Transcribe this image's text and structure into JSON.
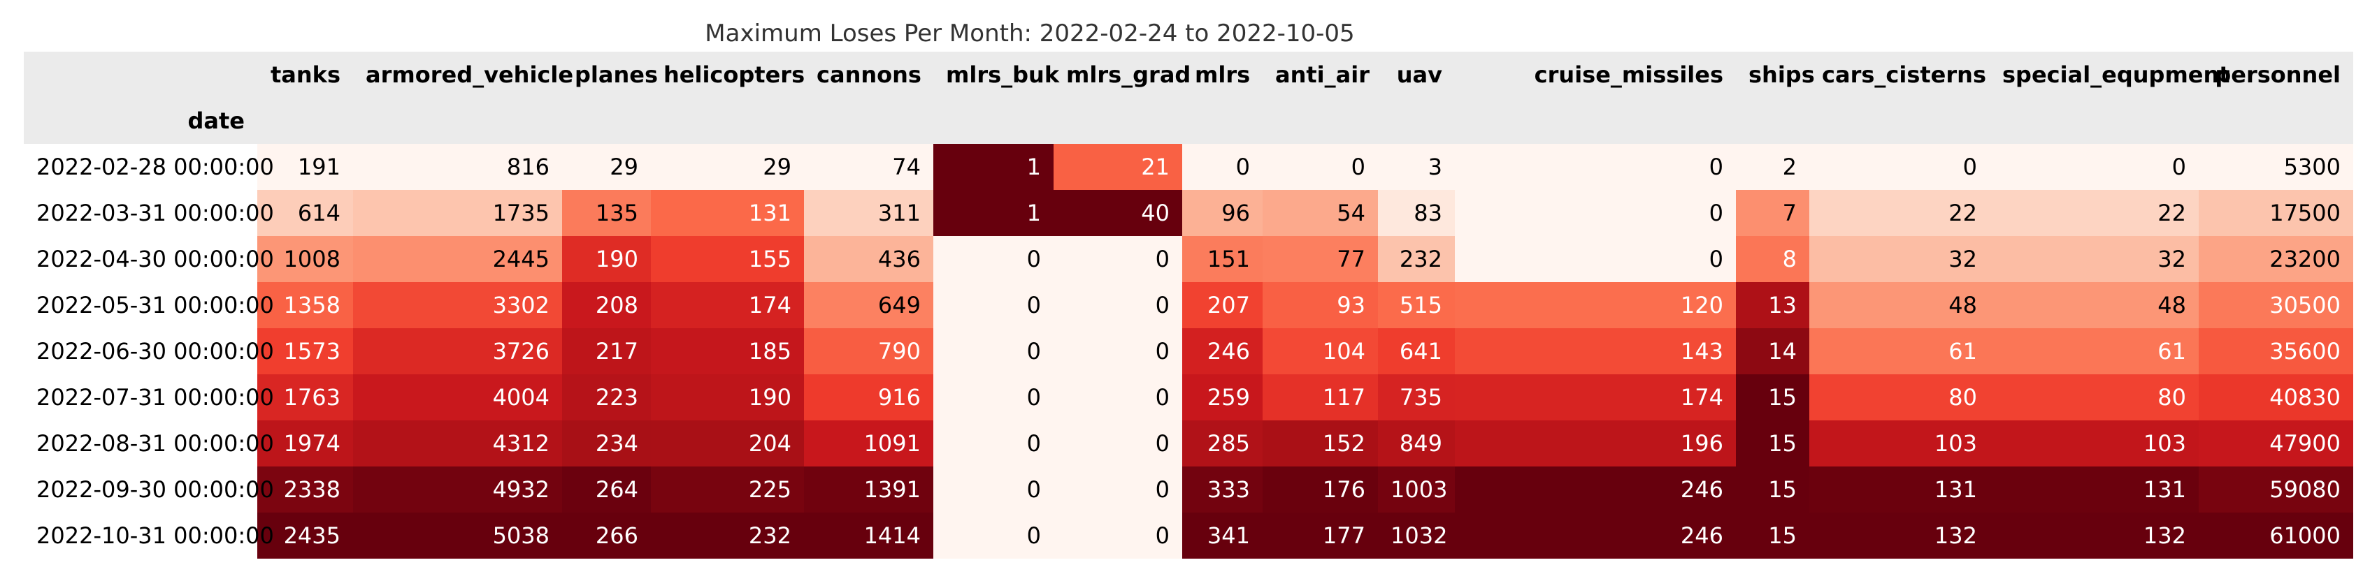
{
  "chart_data": {
    "type": "heatmap",
    "title": "Maximum Loses Per Month: 2022-02-24 to 2022-10-05",
    "index_name": "date",
    "columns": [
      "tanks",
      "armored_vehicle",
      "planes",
      "helicopters",
      "cannons",
      "mlrs_buk",
      "mlrs_grad",
      "mlrs",
      "anti_air",
      "uav",
      "cruise_missiles",
      "ships",
      "cars_cisterns",
      "special_equpment",
      "personnel"
    ],
    "rows": [
      "2022-02-28 00:00:00",
      "2022-03-31 00:00:00",
      "2022-04-30 00:00:00",
      "2022-05-31 00:00:00",
      "2022-06-30 00:00:00",
      "2022-07-31 00:00:00",
      "2022-08-31 00:00:00",
      "2022-09-30 00:00:00",
      "2022-10-31 00:00:00"
    ],
    "values": [
      [
        191,
        816,
        29,
        29,
        74,
        1,
        21,
        0,
        0,
        3,
        0,
        2,
        0,
        0,
        5300
      ],
      [
        614,
        1735,
        135,
        131,
        311,
        1,
        40,
        96,
        54,
        83,
        0,
        7,
        22,
        22,
        17500
      ],
      [
        1008,
        2445,
        190,
        155,
        436,
        0,
        0,
        151,
        77,
        232,
        0,
        8,
        32,
        32,
        23200
      ],
      [
        1358,
        3302,
        208,
        174,
        649,
        0,
        0,
        207,
        93,
        515,
        120,
        13,
        48,
        48,
        30500
      ],
      [
        1573,
        3726,
        217,
        185,
        790,
        0,
        0,
        246,
        104,
        641,
        143,
        14,
        61,
        61,
        35600
      ],
      [
        1763,
        4004,
        223,
        190,
        916,
        0,
        0,
        259,
        117,
        735,
        174,
        15,
        80,
        80,
        40830
      ],
      [
        1974,
        4312,
        234,
        204,
        1091,
        0,
        0,
        285,
        152,
        849,
        196,
        15,
        103,
        103,
        47900
      ],
      [
        2338,
        4932,
        264,
        225,
        1391,
        0,
        0,
        333,
        176,
        1003,
        246,
        15,
        131,
        131,
        59080
      ],
      [
        2435,
        5038,
        266,
        232,
        1414,
        0,
        0,
        341,
        177,
        1032,
        246,
        15,
        132,
        132,
        61000
      ]
    ],
    "colormap": "Reds",
    "color_scale": "per-column min-max"
  },
  "colors": {
    "header_bg": "#ebebeb",
    "reds": [
      "#fff5f0",
      "#fee0d2",
      "#fcbba1",
      "#fc9272",
      "#fb6a4a",
      "#ef3b2c",
      "#cb181d",
      "#a50f15",
      "#67000d"
    ]
  }
}
